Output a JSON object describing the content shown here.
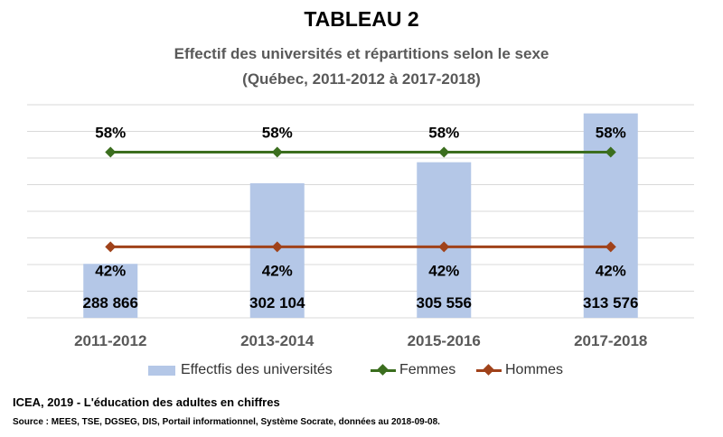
{
  "header": {
    "title": "TABLEAU 2",
    "subtitle_line1": "Effectif des universités et répartitions selon le sexe",
    "subtitle_line2": "(Québec, 2011-2012 à 2017-2018)"
  },
  "chart_data": {
    "type": "bar",
    "title": "TABLEAU 2",
    "subtitle": "Effectif des universités et répartitions selon le sexe (Québec, 2011-2012 à 2017-2018)",
    "categories": [
      "2011-2012",
      "2013-2014",
      "2015-2016",
      "2017-2018"
    ],
    "bar_value_labels": [
      "288 866",
      "302 104",
      "305 556",
      "313 576"
    ],
    "grid": true,
    "legend_position": "bottom",
    "series": [
      {
        "name": "Effectfis des universités",
        "type": "bar",
        "axis": "primary",
        "values": [
          288866,
          302104,
          305556,
          313576
        ],
        "color": "#b4c7e7",
        "axis_range": [
          280000,
          315000
        ]
      },
      {
        "name": "Femmes",
        "type": "line",
        "axis": "secondary",
        "values": [
          58,
          58,
          58,
          58
        ],
        "labels": [
          "58%",
          "58%",
          "58%",
          "58%"
        ],
        "color": "#3b6e1e",
        "marker": "diamond",
        "axis_range": [
          30,
          66
        ]
      },
      {
        "name": "Hommes",
        "type": "line",
        "axis": "secondary",
        "values": [
          42,
          42,
          42,
          42
        ],
        "labels": [
          "42%",
          "42%",
          "42%",
          "42%"
        ],
        "color": "#a0421a",
        "marker": "diamond",
        "axis_range": [
          30,
          66
        ]
      }
    ]
  },
  "legend": {
    "bars_label": "Effectfis des universités",
    "femmes_label": "Femmes",
    "hommes_label": "Hommes"
  },
  "footer": {
    "source_line1": "ICEA, 2019 - L'éducation des adultes en chiffres",
    "source_line2": "Source : MEES,  TSE, DGSEG, DIS, Portail informationnel,  Système Socrate, données au 2018-09-08."
  }
}
